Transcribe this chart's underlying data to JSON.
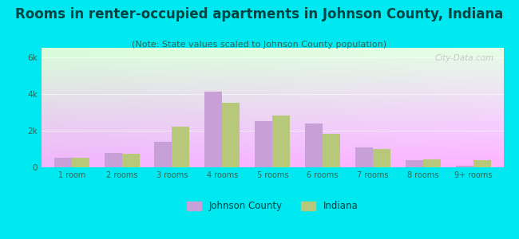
{
  "title": "Rooms in renter-occupied apartments in Johnson County, Indiana",
  "subtitle": "(Note: State values scaled to Johnson County population)",
  "categories": [
    "1 room",
    "2 rooms",
    "3 rooms",
    "4 rooms",
    "5 rooms",
    "6 rooms",
    "7 rooms",
    "8 rooms",
    "9+ rooms"
  ],
  "johnson_county": [
    500,
    800,
    1400,
    4100,
    2500,
    2400,
    1100,
    400,
    100
  ],
  "indiana": [
    500,
    750,
    2200,
    3500,
    2800,
    1800,
    1000,
    450,
    400
  ],
  "johnson_color": "#c8a0d8",
  "indiana_color": "#b8c87a",
  "background_color": "#00e8f0",
  "title_color": "#004444",
  "subtitle_color": "#336655",
  "tick_color": "#336655",
  "title_fontsize": 12,
  "subtitle_fontsize": 8,
  "ylim": [
    0,
    6500
  ],
  "yticks": [
    0,
    2000,
    4000,
    6000
  ],
  "ytick_labels": [
    "0",
    "2k",
    "4k",
    "6k"
  ],
  "watermark": "City-Data.com",
  "bar_width": 0.35,
  "legend_labels": [
    "Johnson County",
    "Indiana"
  ]
}
